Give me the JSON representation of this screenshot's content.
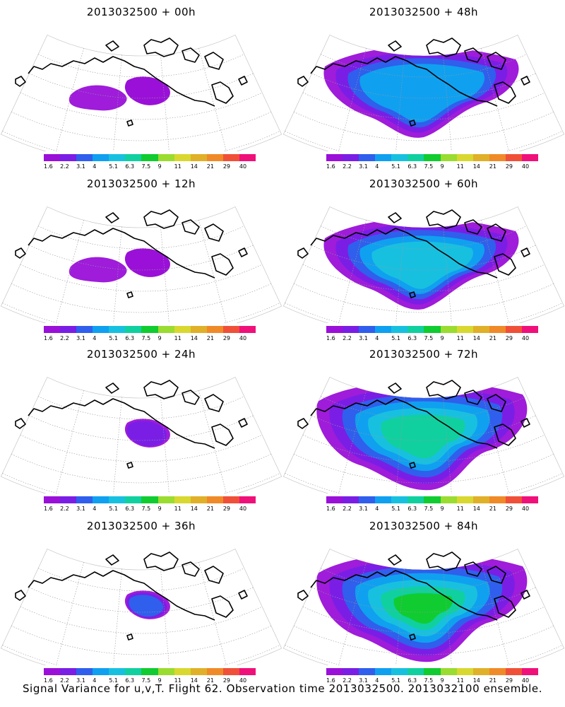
{
  "colorbar": {
    "colors": [
      "#9a10d8",
      "#7a1ee6",
      "#2f5fec",
      "#10a0f0",
      "#18c0e0",
      "#10d0a0",
      "#10cc30",
      "#9adc30",
      "#d8d830",
      "#e0b028",
      "#f08a28",
      "#f05038",
      "#f0107a"
    ],
    "labels": [
      "1.6",
      "2.2",
      "3.1",
      "4",
      "5.1",
      "6.3",
      "7.5",
      "9",
      "11",
      "14",
      "21",
      "29",
      "40"
    ]
  },
  "panels": [
    {
      "title": "2013032500 + 00h",
      "level": 0
    },
    {
      "title": "2013032500 + 48h",
      "level": 4
    },
    {
      "title": "2013032500 + 12h",
      "level": 1
    },
    {
      "title": "2013032500 + 60h",
      "level": 5
    },
    {
      "title": "2013032500 + 24h",
      "level": 2
    },
    {
      "title": "2013032500 + 72h",
      "level": 6
    },
    {
      "title": "2013032500 + 36h",
      "level": 3
    },
    {
      "title": "2013032500 + 84h",
      "level": 7
    }
  ],
  "footer": "Signal Variance for u,v,T. Flight 62. Observation time 2013032500. 2013032100 ensemble."
}
